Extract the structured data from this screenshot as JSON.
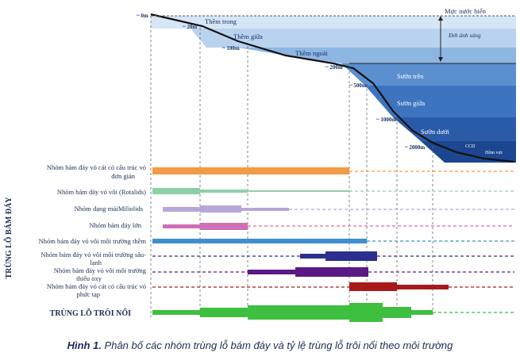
{
  "zones": {
    "sea_level": "Mực nước biển",
    "photic": "Đới ánh sáng",
    "inner_shelf": "Thềm trong",
    "middle_shelf": "Thềm giữa",
    "outer_shelf": "Thềm ngoài",
    "upper_slope": "Sườn trên",
    "middle_slope": "Sườn giữa",
    "lower_slope": "Sườn dưới",
    "ccd": "CCD",
    "abyss": "Hõm vực"
  },
  "depths": [
    "~ 0m",
    "~ 20m",
    "~ 100m",
    "~ 200m",
    "~ 500m",
    "~ 1000m",
    "~ 2000m"
  ],
  "y_axis_title": "TRÙNG LỖ BÁM ĐÁY",
  "groups": [
    {
      "label_lines": [
        "Nhóm bám đáy vỏ cát có cấu trúc vỏ",
        "đơn giản"
      ],
      "color": "#f39a45"
    },
    {
      "label_lines": [
        "Nhóm bám đáy vỏ vôi (Rotalids)"
      ],
      "color": "#8fd0a8"
    },
    {
      "label_lines": [
        "Nhóm dạng múiMiliolids"
      ],
      "color": "#b7a7d8"
    },
    {
      "label_lines": [
        "Nhóm bám đáy lớn"
      ],
      "color": "#cf6fb5"
    },
    {
      "label_lines": [
        "Nhóm bám đáy vỏ vôi môi trường thềm"
      ],
      "color": "#3f8fd0"
    },
    {
      "label_lines": [
        "Nhóm bám đáy vỏ vôi môi trường sâu-",
        "lạnh"
      ],
      "color": "#2b2f8f"
    },
    {
      "label_lines": [
        "Nhóm bám đáy vỏ vôi môi trường",
        "thiếu oxy"
      ],
      "color": "#5a1a85"
    },
    {
      "label_lines": [
        "Nhóm bám đáy vỏ cát có cấu trúc vỏ",
        "phức tạp"
      ],
      "color": "#a81a1a"
    },
    {
      "label_lines": [
        "TRÙNG LỖ TRÔI NỔI"
      ],
      "color": "#3fbf3f"
    }
  ],
  "caption": {
    "label": "Hình 1.",
    "text": " Phân bố các nhóm trùng lỗ bám đáy và tỷ lệ trùng lỗ trôi nổi theo môi trường"
  }
}
